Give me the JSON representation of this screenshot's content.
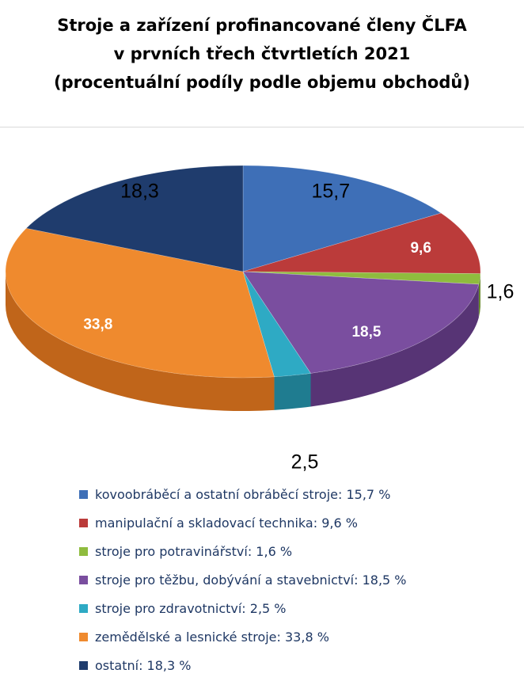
{
  "title_lines": [
    "Stroje a zařízení profinancované členy ČLFA",
    "v prvních třech čtvrtletích 2021",
    "(procentuální podíly podle objemu obchodů)"
  ],
  "chart_data": {
    "type": "pie",
    "title": "Stroje a zařízení profinancované členy ČLFA v prvních třech čtvrtletích 2021 (procentuální podíly podle objemu obchodů)",
    "legend_position": "bottom",
    "value_unit": "%",
    "slices": [
      {
        "label": "kovoobráběcí a ostatní obráběcí stroje",
        "value": 15.7,
        "value_label": "15,7",
        "color": "#3e6fb7",
        "side": "#2a4f86",
        "legend": "kovoobráběcí a ostatní obráběcí stroje: 15,7 %"
      },
      {
        "label": "manipulační a skladovací technika",
        "value": 9.6,
        "value_label": "9,6",
        "color": "#bb3b3a",
        "side": "#8a2826",
        "legend": "manipulační a skladovací technika: 9,6 %"
      },
      {
        "label": "stroje pro potravinářství",
        "value": 1.6,
        "value_label": "1,6",
        "color": "#8fbc3e",
        "side": "#66892a",
        "legend": "stroje pro potravinářství: 1,6 %"
      },
      {
        "label": "stroje pro těžbu, dobývání a stavebnictví",
        "value": 18.5,
        "value_label": "18,5",
        "color": "#7a4e9f",
        "side": "#573475",
        "legend": "stroje pro těžbu, dobývání a stavebnictví: 18,5 %"
      },
      {
        "label": "stroje pro zdravotnictví",
        "value": 2.5,
        "value_label": "2,5",
        "color": "#2eaac4",
        "side": "#1f7c90",
        "legend": "stroje pro zdravotnictví: 2,5 %"
      },
      {
        "label": "zemědělské a lesnické stroje",
        "value": 33.8,
        "value_label": "33,8",
        "color": "#ef8a2e",
        "side": "#c0651a",
        "legend": "zemědělské a lesnické stroje: 33,8 %"
      },
      {
        "label": "ostatní",
        "value": 18.3,
        "value_label": "18,3",
        "color": "#1f3c6d",
        "side": "#142a4f",
        "legend": "ostatní: 18,3 %"
      }
    ]
  }
}
